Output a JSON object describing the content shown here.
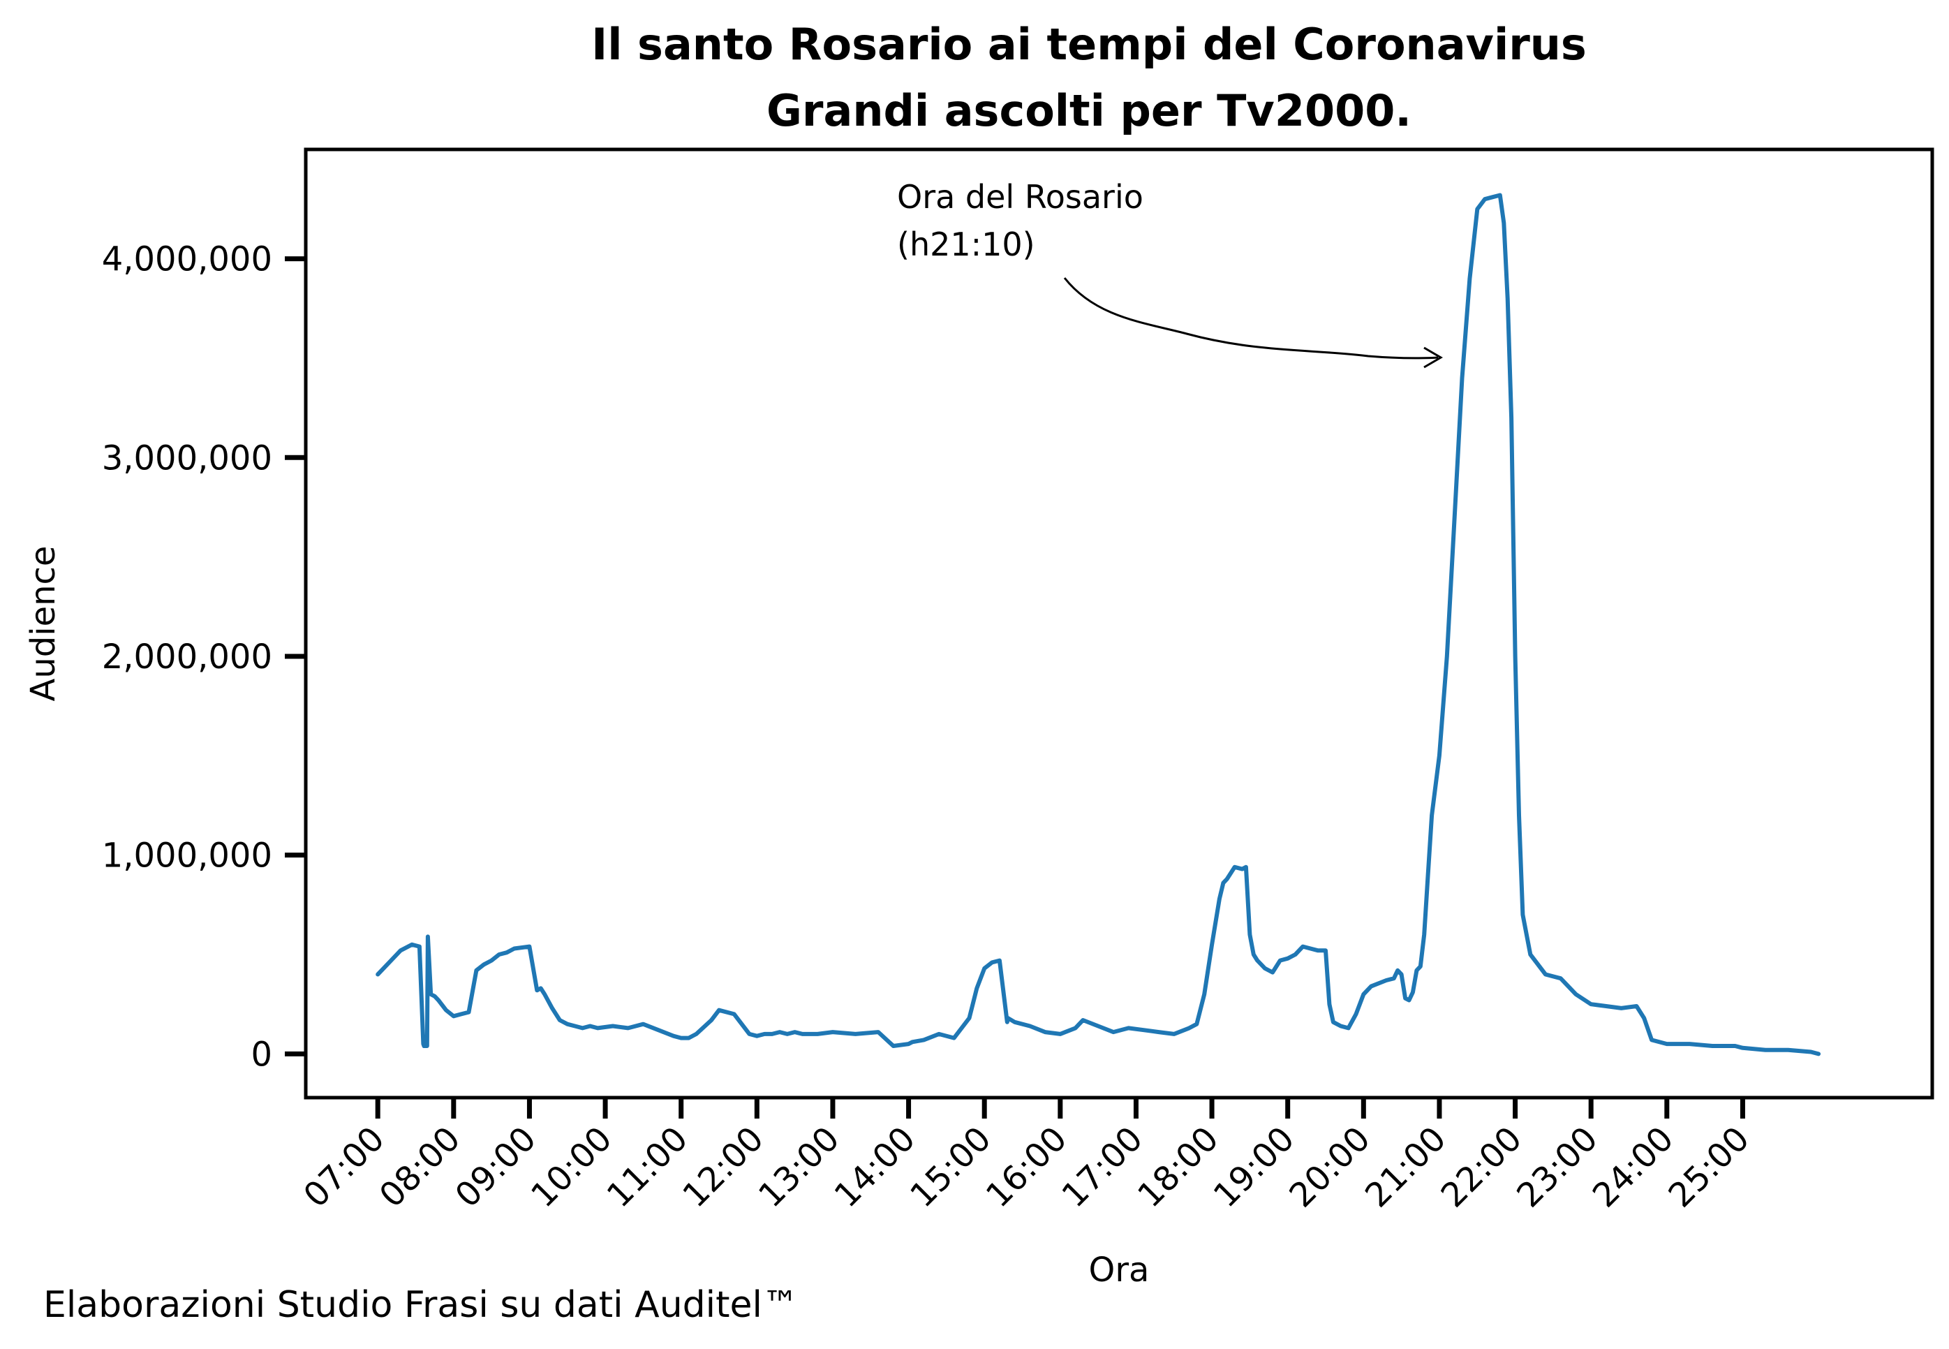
{
  "chart_data": {
    "type": "line",
    "title": "Il santo Rosario ai tempi del Coronavirus",
    "subtitle": "Grandi ascolti per Tv2000.",
    "xlabel": "Ora",
    "ylabel": "Audience",
    "xlim": [
      6.05,
      27.5
    ],
    "ylim": [
      -220000,
      4550000
    ],
    "x_tick_labels": [
      "07:00",
      "08:00",
      "09:00",
      "10:00",
      "11:00",
      "12:00",
      "13:00",
      "14:00",
      "15:00",
      "16:00",
      "17:00",
      "18:00",
      "19:00",
      "20:00",
      "21:00",
      "22:00",
      "23:00",
      "24:00",
      "25:00"
    ],
    "x_ticks": [
      7,
      8,
      9,
      10,
      11,
      12,
      13,
      14,
      15,
      16,
      17,
      18,
      19,
      20,
      21,
      22,
      23,
      24,
      25
    ],
    "y_ticks": [
      0,
      1000000,
      2000000,
      3000000,
      4000000
    ],
    "y_tick_labels": [
      "0",
      "1,000,000",
      "2,000,000",
      "3,000,000",
      "4,000,000"
    ],
    "grid": false,
    "legend": "none",
    "series": [
      {
        "color": "#1f77b4",
        "x": [
          7.0,
          7.15,
          7.3,
          7.45,
          7.55,
          7.6,
          7.61,
          7.65,
          7.66,
          7.7,
          7.75,
          7.8,
          7.9,
          8.0,
          8.1,
          8.2,
          8.3,
          8.4,
          8.5,
          8.6,
          8.7,
          8.8,
          9.0,
          9.1,
          9.15,
          9.2,
          9.3,
          9.4,
          9.5,
          9.6,
          9.7,
          9.8,
          9.9,
          10.1,
          10.3,
          10.5,
          10.7,
          10.9,
          11.0,
          11.1,
          11.2,
          11.4,
          11.5,
          11.7,
          11.9,
          12.0,
          12.1,
          12.2,
          12.3,
          12.4,
          12.5,
          12.6,
          12.8,
          13.0,
          13.3,
          13.6,
          13.8,
          14.0,
          14.05,
          14.2,
          14.4,
          14.6,
          14.8,
          14.9,
          15.0,
          15.1,
          15.2,
          15.3,
          15.31,
          15.4,
          15.6,
          15.8,
          16.0,
          16.2,
          16.3,
          16.5,
          16.7,
          16.9,
          17.1,
          17.3,
          17.5,
          17.7,
          17.8,
          17.9,
          18.0,
          18.1,
          18.15,
          18.2,
          18.3,
          18.4,
          18.45,
          18.5,
          18.55,
          18.6,
          18.7,
          18.8,
          18.9,
          19.0,
          19.1,
          19.2,
          19.3,
          19.4,
          19.5,
          19.55,
          19.6,
          19.7,
          19.8,
          19.9,
          20.0,
          20.1,
          20.3,
          20.4,
          20.45,
          20.5,
          20.55,
          20.6,
          20.65,
          20.7,
          20.75,
          20.8,
          20.85,
          20.9,
          21.0,
          21.1,
          21.2,
          21.3,
          21.4,
          21.5,
          21.6,
          21.7,
          21.8,
          21.85,
          21.9,
          21.95,
          22.0,
          22.05,
          22.1,
          22.2,
          22.4,
          22.6,
          22.8,
          23.0,
          23.2,
          23.4,
          23.6,
          23.7,
          23.8,
          24.0,
          24.3,
          24.6,
          24.9,
          25.0,
          25.3,
          25.6,
          25.9,
          26.0
        ],
        "y": [
          400000,
          460000,
          520000,
          550000,
          540000,
          50000,
          40000,
          40000,
          590000,
          300000,
          290000,
          270000,
          220000,
          190000,
          200000,
          210000,
          420000,
          450000,
          470000,
          500000,
          510000,
          530000,
          540000,
          320000,
          330000,
          300000,
          230000,
          170000,
          150000,
          140000,
          130000,
          140000,
          130000,
          140000,
          130000,
          150000,
          120000,
          90000,
          80000,
          80000,
          100000,
          170000,
          220000,
          200000,
          100000,
          90000,
          100000,
          100000,
          110000,
          100000,
          110000,
          100000,
          100000,
          110000,
          100000,
          110000,
          40000,
          50000,
          60000,
          70000,
          100000,
          80000,
          180000,
          330000,
          430000,
          460000,
          470000,
          160000,
          180000,
          160000,
          140000,
          110000,
          100000,
          130000,
          170000,
          140000,
          110000,
          130000,
          120000,
          110000,
          100000,
          130000,
          150000,
          300000,
          550000,
          780000,
          860000,
          880000,
          940000,
          930000,
          940000,
          600000,
          500000,
          470000,
          430000,
          410000,
          470000,
          480000,
          500000,
          540000,
          530000,
          520000,
          520000,
          250000,
          160000,
          140000,
          130000,
          200000,
          300000,
          340000,
          370000,
          380000,
          420000,
          400000,
          280000,
          270000,
          310000,
          420000,
          440000,
          600000,
          900000,
          1200000,
          1500000,
          2000000,
          2700000,
          3400000,
          3900000,
          4250000,
          4300000,
          4310000,
          4320000,
          4180000,
          3800000,
          3200000,
          2000000,
          1200000,
          700000,
          500000,
          400000,
          380000,
          300000,
          250000,
          240000,
          230000,
          240000,
          180000,
          70000,
          50000,
          50000,
          40000,
          40000,
          30000,
          20000,
          20000,
          10000,
          0
        ]
      }
    ],
    "annotation": {
      "text_line1": "Ora del Rosario",
      "text_line2": "(h21:10)",
      "target_x": 21.1,
      "target_y": 3500000
    },
    "footnote": "Elaborazioni Studio Frasi su dati Auditel™"
  }
}
